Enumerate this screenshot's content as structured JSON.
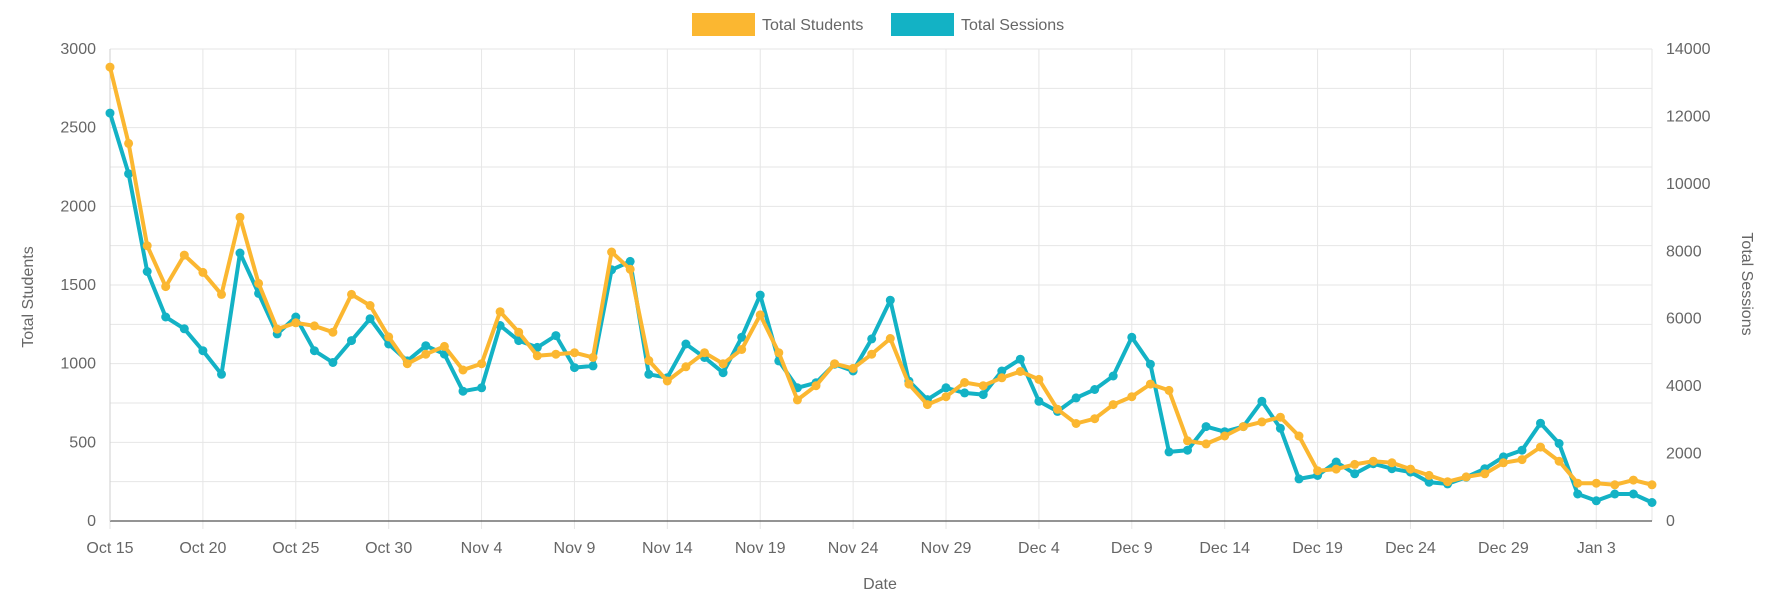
{
  "colors": {
    "students": "#FBB731",
    "sessions": "#13B2C5",
    "grid": "#e6e6e6",
    "text": "#666666"
  },
  "legend": {
    "students_label": "Total Students",
    "sessions_label": "Total Sessions"
  },
  "chart_data": {
    "type": "line",
    "title": "",
    "xlabel": "Date",
    "ylabel_left": "Total Students",
    "ylabel_right": "Total Sessions",
    "ylim_left": [
      0,
      3000
    ],
    "ylim_right": [
      0,
      14000
    ],
    "left_ticks": [
      0,
      500,
      1000,
      1500,
      2000,
      2500,
      3000
    ],
    "right_ticks": [
      0,
      2000,
      4000,
      6000,
      8000,
      10000,
      12000,
      14000
    ],
    "grid": true,
    "legend_position": "top",
    "x_tick_labels": [
      "Oct 15",
      "Oct 20",
      "Oct 25",
      "Oct 30",
      "Nov 4",
      "Nov 9",
      "Nov 14",
      "Nov 19",
      "Nov 24",
      "Nov 29",
      "Dec 4",
      "Dec 9",
      "Dec 14",
      "Dec 19",
      "Dec 24",
      "Dec 29",
      "Jan 3"
    ],
    "x_start": "Oct 15",
    "x_end": "Jan 4",
    "series": [
      {
        "name": "Total Students",
        "axis": "left",
        "values": [
          2885,
          2400,
          1750,
          1490,
          1690,
          1580,
          1440,
          1930,
          1510,
          1220,
          1260,
          1240,
          1200,
          1440,
          1370,
          1170,
          1000,
          1060,
          1110,
          960,
          1000,
          1330,
          1200,
          1050,
          1060,
          1070,
          1040,
          1710,
          1600,
          1020,
          890,
          980,
          1070,
          1000,
          1090,
          1310,
          1070,
          770,
          860,
          1000,
          970,
          1060,
          1160,
          870,
          740,
          790,
          880,
          860,
          910,
          950,
          900,
          710,
          620,
          650,
          740,
          790,
          870,
          830,
          510,
          490,
          540,
          600,
          630,
          660,
          540,
          320,
          330,
          360,
          380,
          370,
          330,
          290,
          250,
          280,
          300,
          370,
          390,
          470,
          380,
          240,
          240,
          230,
          260,
          230
        ]
      },
      {
        "name": "Total Sessions",
        "axis": "right",
        "values": [
          12100,
          10300,
          7400,
          6050,
          5700,
          5050,
          4350,
          7950,
          6750,
          5550,
          6050,
          5050,
          4700,
          5350,
          6000,
          5250,
          4750,
          5200,
          4950,
          3850,
          3950,
          5800,
          5350,
          5150,
          5500,
          4550,
          4600,
          7450,
          7700,
          4350,
          4250,
          5250,
          4850,
          4400,
          5450,
          6700,
          4750,
          3950,
          4100,
          4650,
          4450,
          5400,
          6550,
          4150,
          3600,
          3950,
          3800,
          3750,
          4450,
          4800,
          3550,
          3250,
          3650,
          3900,
          4300,
          5450,
          4650,
          2050,
          2100,
          2800,
          2650,
          2800,
          3550,
          2750,
          1250,
          1350,
          1750,
          1400,
          1700,
          1550,
          1450,
          1150,
          1100,
          1300,
          1550,
          1900,
          2100,
          2900,
          2300,
          800,
          600,
          800,
          800,
          550
        ]
      }
    ]
  }
}
